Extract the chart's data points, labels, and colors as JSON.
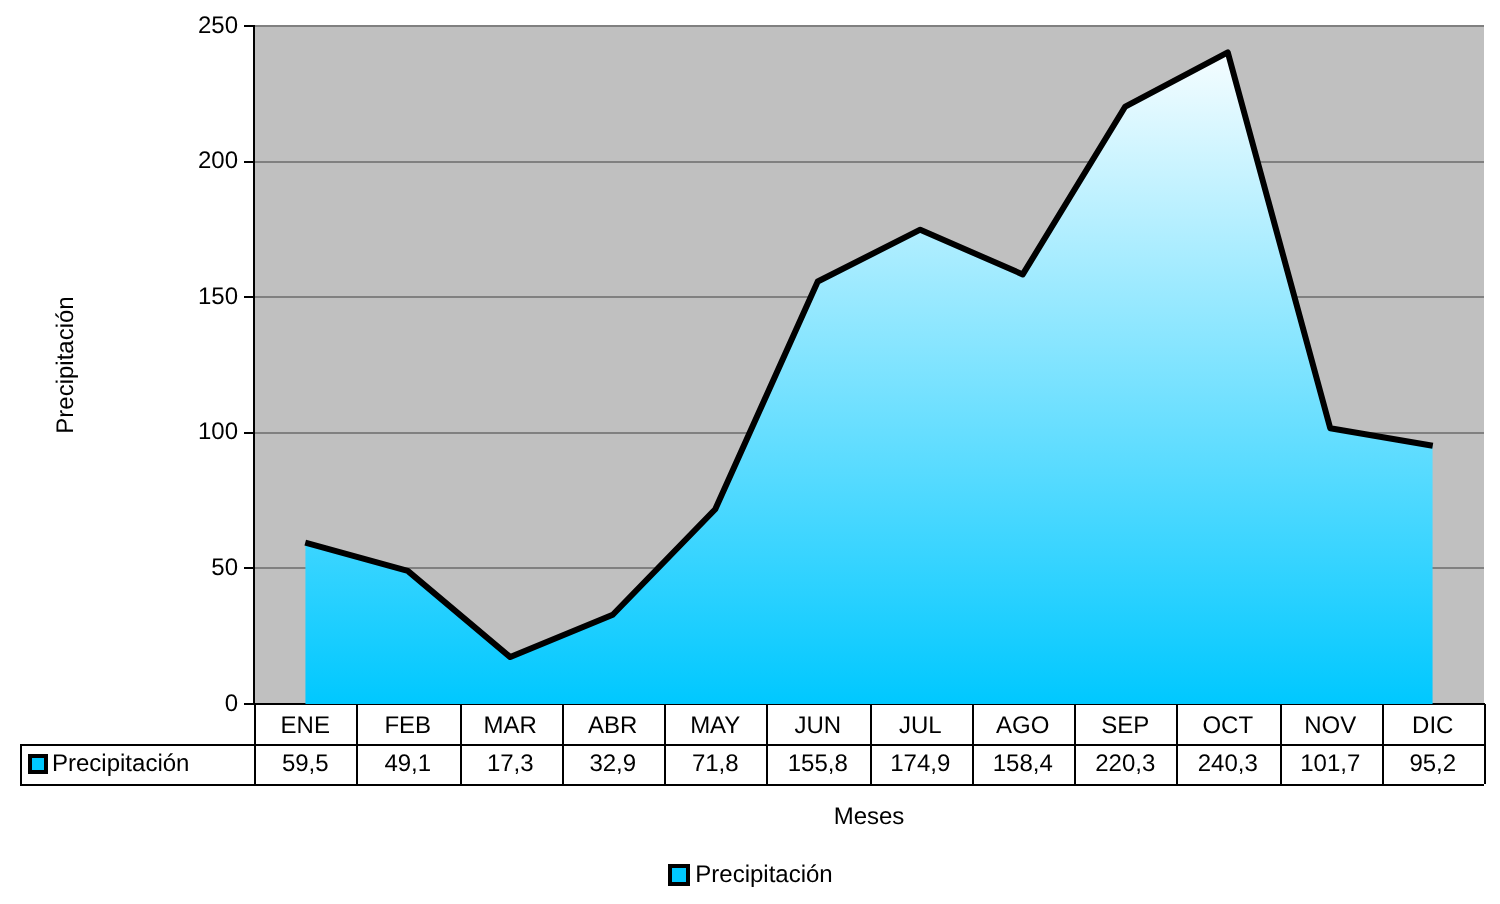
{
  "chart_data": {
    "type": "area",
    "xlabel": "Meses",
    "ylabel": "Precipitación",
    "categories": [
      "ENE",
      "FEB",
      "MAR",
      "ABR",
      "MAY",
      "JUN",
      "JUL",
      "AGO",
      "SEP",
      "OCT",
      "NOV",
      "DIC"
    ],
    "series": [
      {
        "name": "Precipitación",
        "color": "#00c8ff",
        "values": [
          59.5,
          49.1,
          17.3,
          32.9,
          71.8,
          155.8,
          174.9,
          158.4,
          220.3,
          240.3,
          101.7,
          95.2
        ],
        "value_labels": [
          "59,5",
          "49,1",
          "17,3",
          "32,9",
          "71,8",
          "155,8",
          "174,9",
          "158,4",
          "220,3",
          "240,3",
          "101,7",
          "95,2"
        ]
      }
    ],
    "ylim": [
      0,
      250
    ],
    "yticks": [
      0,
      50,
      100,
      150,
      200,
      250
    ],
    "grid": "y",
    "legend": "bottom",
    "marker": "none"
  }
}
